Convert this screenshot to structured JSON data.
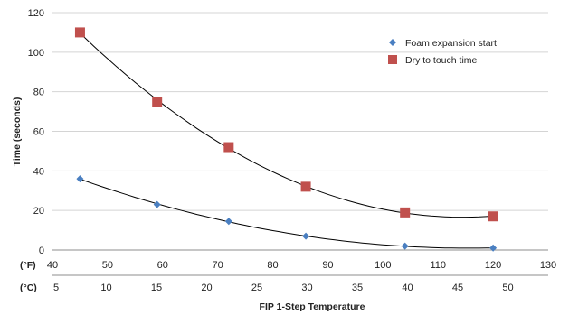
{
  "chart_data": {
    "type": "scatter",
    "title": "",
    "ylabel": "Time (seconds)",
    "xlabel": "FIP 1-Step Temperature",
    "ylim": [
      0,
      120
    ],
    "yticks": [
      "0",
      "20",
      "40",
      "60",
      "80",
      "100",
      "120"
    ],
    "x_axis_f": {
      "unit": "(°F)",
      "lim": [
        40,
        130
      ],
      "ticks": [
        "40",
        "50",
        "60",
        "70",
        "80",
        "90",
        "100",
        "110",
        "120",
        "130"
      ]
    },
    "x_axis_c": {
      "unit": "(°C)",
      "ticks": [
        "5",
        "10",
        "15",
        "20",
        "25",
        "30",
        "35",
        "40",
        "45",
        "50"
      ]
    },
    "grid": "horizontal",
    "legend_position": "top-right",
    "series": [
      {
        "name": "Foam expansion start",
        "marker": "diamond",
        "color": "#4a7fc1",
        "trendline": "polynomial",
        "x": [
          45,
          59,
          72,
          86,
          104,
          120
        ],
        "y": [
          36,
          23,
          14.5,
          7,
          2,
          1
        ]
      },
      {
        "name": "Dry to touch time",
        "marker": "square",
        "color": "#c0504d",
        "trendline": "polynomial",
        "x": [
          45,
          59,
          72,
          86,
          104,
          120
        ],
        "y": [
          110,
          75,
          52,
          32,
          19,
          17
        ]
      }
    ]
  }
}
